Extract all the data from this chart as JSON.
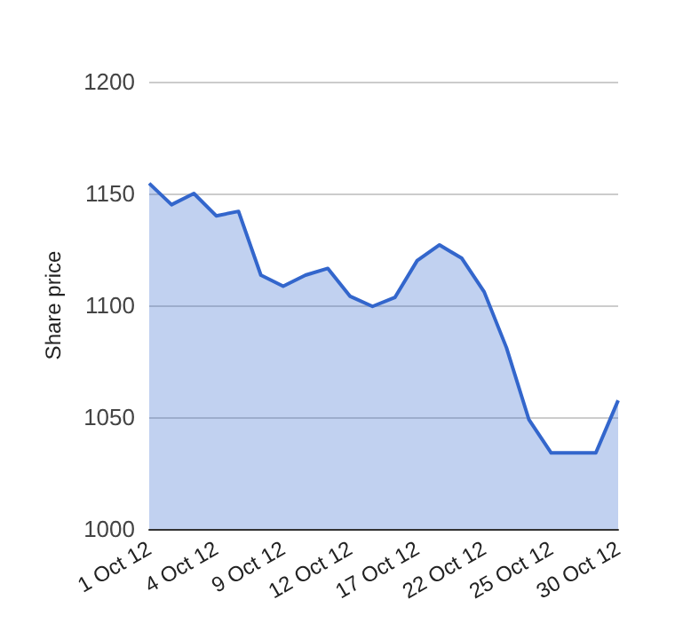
{
  "chart_data": {
    "type": "area",
    "ylabel": "Share price",
    "categories": [
      "1 Oct 12",
      null,
      null,
      "4 Oct 12",
      null,
      null,
      "9 Oct 12",
      null,
      null,
      "12 Oct 12",
      null,
      null,
      "17 Oct 12",
      null,
      null,
      "22 Oct 12",
      null,
      null,
      "25 Oct 12",
      null,
      null,
      "30 Oct 12"
    ],
    "series": [
      {
        "color": "#3366cc",
        "values": [
          1154.5,
          1145,
          1150,
          1140,
          1142,
          1113.5,
          1108.5,
          1113.5,
          1116.5,
          1104,
          1099.5,
          1103.5,
          1120,
          1127,
          1121,
          1106,
          1081,
          1049,
          1034,
          1034,
          1034,
          1057.5
        ]
      }
    ],
    "ylim": [
      1000,
      1200
    ],
    "yticks": [
      1000,
      1050,
      1100,
      1150,
      1200
    ],
    "grid": "y",
    "marker": "none",
    "line_style": "solid"
  }
}
